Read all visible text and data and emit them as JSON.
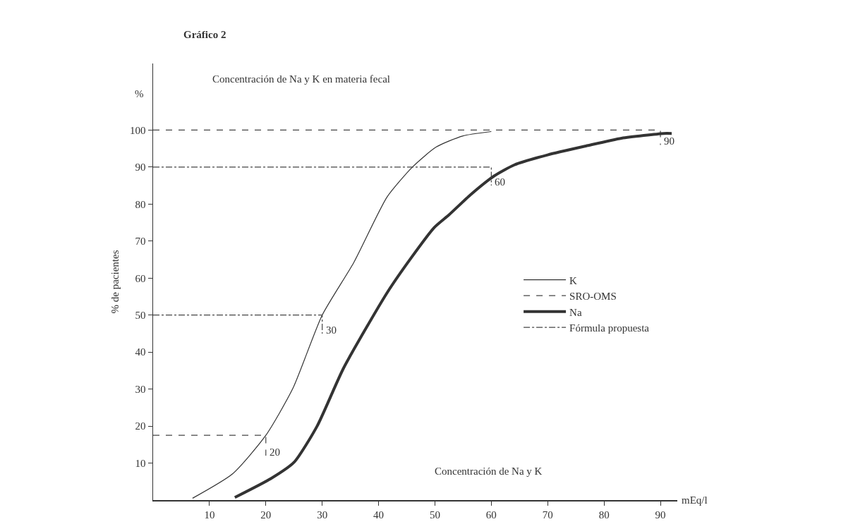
{
  "chart_data": {
    "type": "line",
    "title": "Gráfico 2",
    "subtitle": "Concentración de Na y K en materia fecal",
    "xlabel": "Concentración de Na y K",
    "ylabel": "% de pacientes",
    "xlim": [
      0,
      93
    ],
    "ylim": [
      0,
      118
    ],
    "xticks": [
      10,
      20,
      30,
      40,
      50,
      60,
      70,
      80,
      90
    ],
    "yticks": [
      10,
      20,
      30,
      40,
      50,
      60,
      70,
      80,
      90,
      100
    ],
    "legend": "right",
    "series": [
      {
        "name": "K",
        "color": "#333333",
        "line_style": "solid",
        "x": [
          7,
          14.1,
          20,
          24.8,
          30,
          35.6,
          41.5,
          46,
          50.2,
          54.9,
          60
        ],
        "values": [
          0.5,
          7.1,
          17.5,
          30.2,
          50,
          64.2,
          81.9,
          90,
          95.4,
          98.4,
          99.6
        ]
      },
      {
        "name": "SRO-OMS",
        "color": "#444444",
        "line_style": "dashed",
        "x": [
          0,
          90,
          90,
          null,
          0,
          20,
          20
        ],
        "values": [
          100,
          100,
          96,
          null,
          17.5,
          17.5,
          12
        ]
      },
      {
        "name": "Na",
        "color": "#333333",
        "line_style": "solid",
        "x": [
          14.5,
          20.9,
          25,
          29.1,
          33.8,
          41.5,
          45.8,
          49.9,
          52.5,
          56.3,
          60.5,
          64.1,
          70,
          76.8,
          83.1,
          90.6,
          92
        ],
        "values": [
          0.7,
          5.8,
          10.2,
          20,
          35.7,
          56,
          65.5,
          73.7,
          77.1,
          82.5,
          87.6,
          90.6,
          93.3,
          95.7,
          97.8,
          99.1,
          99.1
        ]
      },
      {
        "name": "Fórmula propuesta",
        "color": "#444444",
        "line_style": "dashdot",
        "x": [
          0,
          60,
          60,
          null,
          0,
          30,
          30
        ],
        "values": [
          90,
          90,
          85,
          null,
          50,
          50,
          45
        ]
      }
    ],
    "annotations": [
      "%",
      "mEq/l",
      {
        "text": "20",
        "x": 20,
        "y": 13
      },
      {
        "text": "30",
        "x": 30,
        "y": 46
      },
      {
        "text": "60",
        "x": 60,
        "y": 86
      },
      {
        "text": "90",
        "x": 90,
        "y": 97
      }
    ]
  }
}
